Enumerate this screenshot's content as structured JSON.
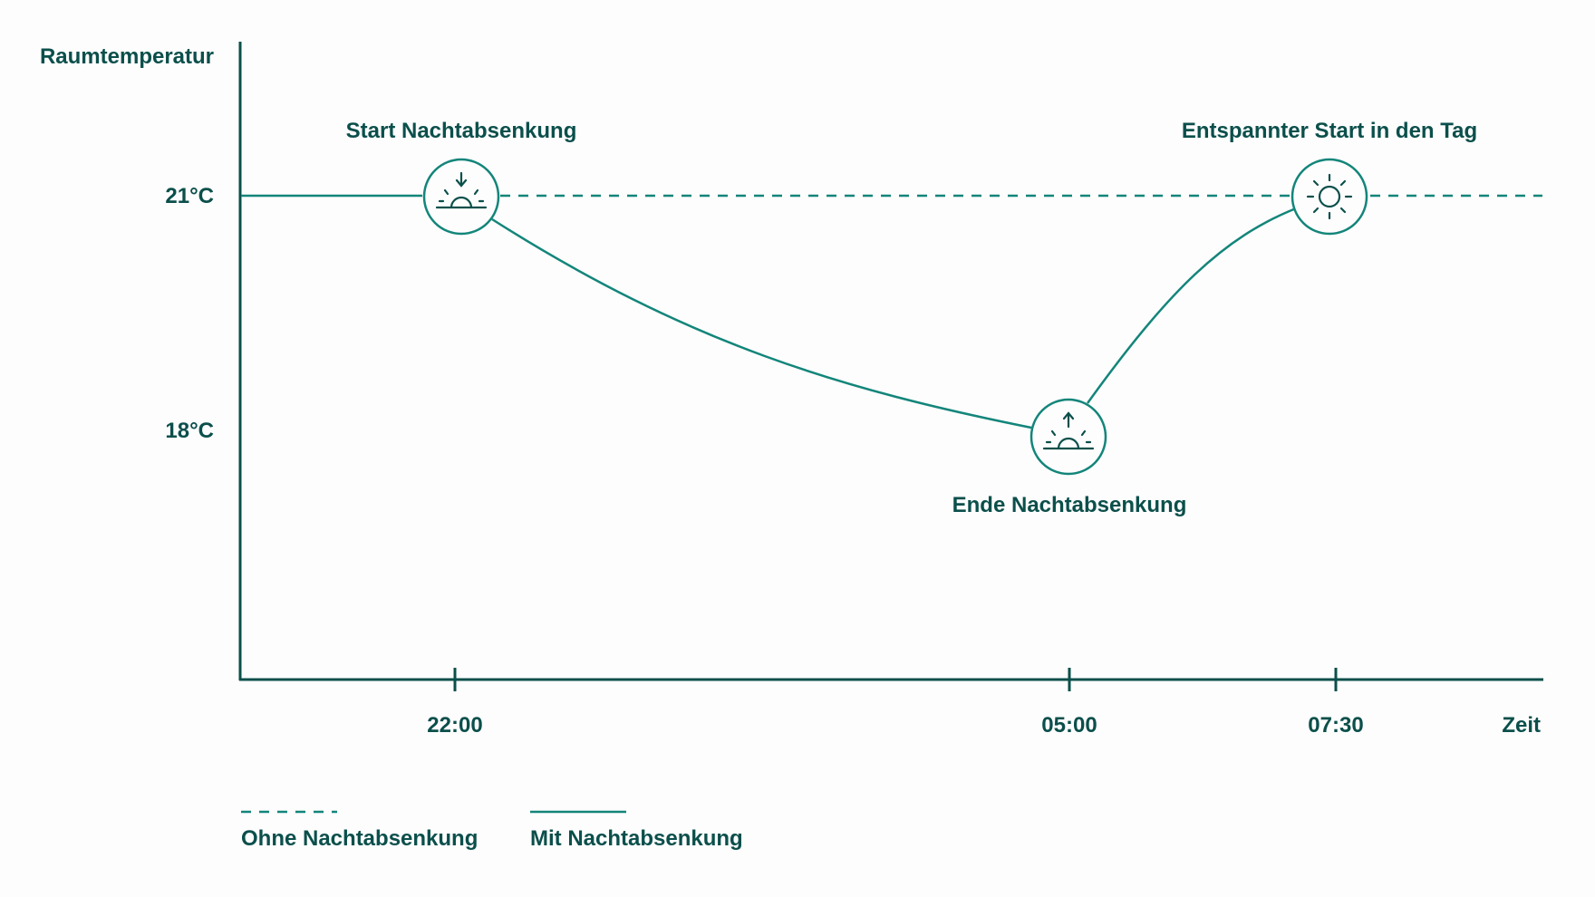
{
  "chart_data": {
    "type": "line",
    "ylabel": "Raumtemperatur",
    "xlabel": "Zeit",
    "y_ticks": [
      {
        "value": 21,
        "label": "21°C"
      },
      {
        "value": 18,
        "label": "18°C"
      }
    ],
    "x_ticks": [
      {
        "value": "22:00",
        "label": "22:00"
      },
      {
        "value": "05:00",
        "label": "05:00"
      },
      {
        "value": "07:30",
        "label": "07:30"
      }
    ],
    "series": [
      {
        "name": "Ohne Nachtabsenkung",
        "style": "dashed",
        "points": [
          {
            "x": "22:00",
            "y": 21
          },
          {
            "x": "07:30",
            "y": 21
          }
        ]
      },
      {
        "name": "Mit Nachtabsenkung",
        "style": "solid",
        "points": [
          {
            "x": "22:00",
            "y": 21
          },
          {
            "x": "05:00",
            "y": 18
          },
          {
            "x": "07:30",
            "y": 21
          }
        ]
      }
    ],
    "annotations": [
      {
        "x": "22:00",
        "y": 21,
        "label": "Start Nachtabsenkung",
        "icon": "sunset-down-icon",
        "placement": "above"
      },
      {
        "x": "05:00",
        "y": 18,
        "label": "Ende Nachtabsenkung",
        "icon": "sunrise-up-icon",
        "placement": "below"
      },
      {
        "x": "07:30",
        "y": 21,
        "label": "Entspannter Start in den Tag",
        "icon": "sun-icon",
        "placement": "above"
      }
    ],
    "legend": {
      "placement": "bottom-left",
      "items": [
        {
          "label": "Ohne Nachtabsenkung",
          "style": "dashed"
        },
        {
          "label": "Mit Nachtabsenkung",
          "style": "solid"
        }
      ]
    },
    "grid": false,
    "colors": {
      "axis": "#0b4f4b",
      "line": "#13857a",
      "text": "#0b4f4b"
    }
  }
}
